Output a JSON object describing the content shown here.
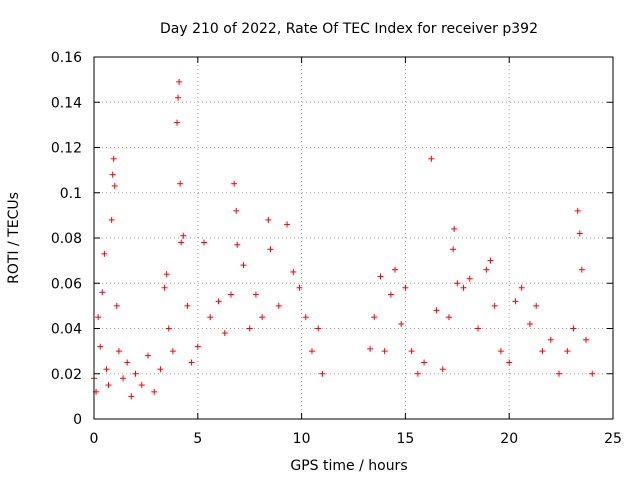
{
  "chart_data": {
    "type": "scatter",
    "title": "Day 210 of 2022, Rate Of TEC Index for receiver p392",
    "xlabel": "GPS time / hours",
    "ylabel": "ROTI / TECUs",
    "xlim": [
      0,
      25
    ],
    "ylim": [
      0,
      0.16
    ],
    "xticks": [
      0,
      5,
      10,
      15,
      20,
      25
    ],
    "xtick_labels": [
      "0",
      "5",
      "10",
      "15",
      "20",
      "25"
    ],
    "yticks": [
      0,
      0.02,
      0.04,
      0.06,
      0.08,
      0.1,
      0.12,
      0.14,
      0.16
    ],
    "ytick_labels": [
      "0",
      "0.02",
      "0.04",
      "0.06",
      "0.08",
      "0.1",
      "0.12",
      "0.14",
      "0.16"
    ],
    "grid": true,
    "marker": "plus",
    "color": "#ff0000",
    "series": [
      {
        "values": [
          {
            "x": 0.0,
            "y": 0.018
          },
          {
            "x": 0.1,
            "y": 0.012
          },
          {
            "x": 0.2,
            "y": 0.045
          },
          {
            "x": 0.3,
            "y": 0.032
          },
          {
            "x": 0.4,
            "y": 0.056
          },
          {
            "x": 0.5,
            "y": 0.073
          },
          {
            "x": 0.6,
            "y": 0.022
          },
          {
            "x": 0.7,
            "y": 0.015
          },
          {
            "x": 0.85,
            "y": 0.088
          },
          {
            "x": 0.9,
            "y": 0.108
          },
          {
            "x": 0.95,
            "y": 0.115
          },
          {
            "x": 1.0,
            "y": 0.103
          },
          {
            "x": 1.1,
            "y": 0.05
          },
          {
            "x": 1.2,
            "y": 0.03
          },
          {
            "x": 1.4,
            "y": 0.018
          },
          {
            "x": 1.6,
            "y": 0.025
          },
          {
            "x": 1.8,
            "y": 0.01
          },
          {
            "x": 2.0,
            "y": 0.02
          },
          {
            "x": 2.3,
            "y": 0.015
          },
          {
            "x": 2.6,
            "y": 0.028
          },
          {
            "x": 2.9,
            "y": 0.012
          },
          {
            "x": 3.2,
            "y": 0.022
          },
          {
            "x": 3.4,
            "y": 0.058
          },
          {
            "x": 3.5,
            "y": 0.064
          },
          {
            "x": 3.6,
            "y": 0.04
          },
          {
            "x": 3.8,
            "y": 0.03
          },
          {
            "x": 4.0,
            "y": 0.131
          },
          {
            "x": 4.05,
            "y": 0.142
          },
          {
            "x": 4.1,
            "y": 0.149
          },
          {
            "x": 4.15,
            "y": 0.104
          },
          {
            "x": 4.2,
            "y": 0.078
          },
          {
            "x": 4.3,
            "y": 0.081
          },
          {
            "x": 4.5,
            "y": 0.05
          },
          {
            "x": 4.7,
            "y": 0.025
          },
          {
            "x": 5.0,
            "y": 0.032
          },
          {
            "x": 5.3,
            "y": 0.078
          },
          {
            "x": 5.6,
            "y": 0.045
          },
          {
            "x": 6.0,
            "y": 0.052
          },
          {
            "x": 6.3,
            "y": 0.038
          },
          {
            "x": 6.6,
            "y": 0.055
          },
          {
            "x": 6.75,
            "y": 0.104
          },
          {
            "x": 6.85,
            "y": 0.092
          },
          {
            "x": 6.9,
            "y": 0.077
          },
          {
            "x": 7.2,
            "y": 0.068
          },
          {
            "x": 7.5,
            "y": 0.04
          },
          {
            "x": 7.8,
            "y": 0.055
          },
          {
            "x": 8.1,
            "y": 0.045
          },
          {
            "x": 8.4,
            "y": 0.088
          },
          {
            "x": 8.5,
            "y": 0.075
          },
          {
            "x": 8.9,
            "y": 0.05
          },
          {
            "x": 9.3,
            "y": 0.086
          },
          {
            "x": 9.6,
            "y": 0.065
          },
          {
            "x": 9.9,
            "y": 0.058
          },
          {
            "x": 10.2,
            "y": 0.045
          },
          {
            "x": 10.5,
            "y": 0.03
          },
          {
            "x": 10.8,
            "y": 0.04
          },
          {
            "x": 11.0,
            "y": 0.02
          },
          {
            "x": 13.3,
            "y": 0.031
          },
          {
            "x": 13.5,
            "y": 0.045
          },
          {
            "x": 13.8,
            "y": 0.063
          },
          {
            "x": 14.0,
            "y": 0.03
          },
          {
            "x": 14.3,
            "y": 0.055
          },
          {
            "x": 14.5,
            "y": 0.066
          },
          {
            "x": 14.8,
            "y": 0.042
          },
          {
            "x": 15.0,
            "y": 0.058
          },
          {
            "x": 15.3,
            "y": 0.03
          },
          {
            "x": 15.6,
            "y": 0.02
          },
          {
            "x": 15.9,
            "y": 0.025
          },
          {
            "x": 16.25,
            "y": 0.115
          },
          {
            "x": 16.5,
            "y": 0.048
          },
          {
            "x": 16.8,
            "y": 0.022
          },
          {
            "x": 17.1,
            "y": 0.045
          },
          {
            "x": 17.3,
            "y": 0.075
          },
          {
            "x": 17.35,
            "y": 0.084
          },
          {
            "x": 17.5,
            "y": 0.06
          },
          {
            "x": 17.8,
            "y": 0.058
          },
          {
            "x": 18.1,
            "y": 0.062
          },
          {
            "x": 18.5,
            "y": 0.04
          },
          {
            "x": 18.9,
            "y": 0.066
          },
          {
            "x": 19.1,
            "y": 0.07
          },
          {
            "x": 19.3,
            "y": 0.05
          },
          {
            "x": 19.6,
            "y": 0.03
          },
          {
            "x": 20.0,
            "y": 0.025
          },
          {
            "x": 20.3,
            "y": 0.052
          },
          {
            "x": 20.6,
            "y": 0.058
          },
          {
            "x": 21.0,
            "y": 0.042
          },
          {
            "x": 21.3,
            "y": 0.05
          },
          {
            "x": 21.6,
            "y": 0.03
          },
          {
            "x": 22.0,
            "y": 0.035
          },
          {
            "x": 22.4,
            "y": 0.02
          },
          {
            "x": 22.8,
            "y": 0.03
          },
          {
            "x": 23.1,
            "y": 0.04
          },
          {
            "x": 23.3,
            "y": 0.092
          },
          {
            "x": 23.4,
            "y": 0.082
          },
          {
            "x": 23.5,
            "y": 0.066
          },
          {
            "x": 23.7,
            "y": 0.035
          },
          {
            "x": 24.0,
            "y": 0.02
          }
        ]
      }
    ]
  }
}
